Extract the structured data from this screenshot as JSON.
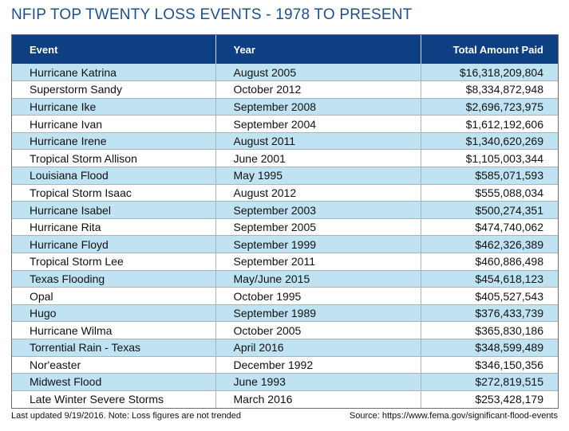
{
  "title": "NFIP TOP TWENTY LOSS EVENTS - 1978 TO PRESENT",
  "footer": {
    "note": "Last updated 9/19/2016. Note: Loss figures are not trended",
    "source": "Source: https://www.fema.gov/significant-flood-events"
  },
  "colors": {
    "title": "#1d4f8e",
    "header_bg": "#0e3f82",
    "row_stripe": "#bfe3f2",
    "row_plain": "#ffffff"
  },
  "chart_data": {
    "type": "table",
    "title": "NFIP TOP TWENTY LOSS EVENTS - 1978 TO PRESENT",
    "columns": [
      "Event",
      "Year",
      "Total Amount Paid"
    ],
    "rows": [
      [
        "Hurricane Katrina",
        "August 2005",
        "$16,318,209,804"
      ],
      [
        "Superstorm Sandy",
        "October 2012",
        "$8,334,872,948"
      ],
      [
        "Hurricane Ike",
        "September 2008",
        "$2,696,723,975"
      ],
      [
        "Hurricane Ivan",
        "September 2004",
        "$1,612,192,606"
      ],
      [
        "Hurricane Irene",
        "August 2011",
        "$1,340,620,269"
      ],
      [
        "Tropical Storm Allison",
        "June 2001",
        "$1,105,003,344"
      ],
      [
        "Louisiana Flood",
        "May 1995",
        "$585,071,593"
      ],
      [
        "Tropical Storm Isaac",
        "August 2012",
        "$555,088,034"
      ],
      [
        "Hurricane Isabel",
        "September 2003",
        "$500,274,351"
      ],
      [
        "Hurricane Rita",
        "September 2005",
        "$474,740,062"
      ],
      [
        "Hurricane Floyd",
        "September 1999",
        "$462,326,389"
      ],
      [
        "Tropical Storm Lee",
        "September 2011",
        "$460,886,498"
      ],
      [
        "Texas Flooding",
        "May/June 2015",
        "$454,618,123"
      ],
      [
        "Opal",
        "October 1995",
        "$405,527,543"
      ],
      [
        "Hugo",
        "September 1989",
        "$376,433,739"
      ],
      [
        "Hurricane Wilma",
        "October 2005",
        "$365,830,186"
      ],
      [
        "Torrential Rain - Texas",
        "April 2016",
        "$348,599,489"
      ],
      [
        "Nor'easter",
        "December 1992",
        "$346,150,356"
      ],
      [
        "Midwest Flood",
        "June 1993",
        "$272,819,515"
      ],
      [
        "Late Winter Severe Storms",
        "March 2016",
        "$253,428,179"
      ]
    ]
  }
}
